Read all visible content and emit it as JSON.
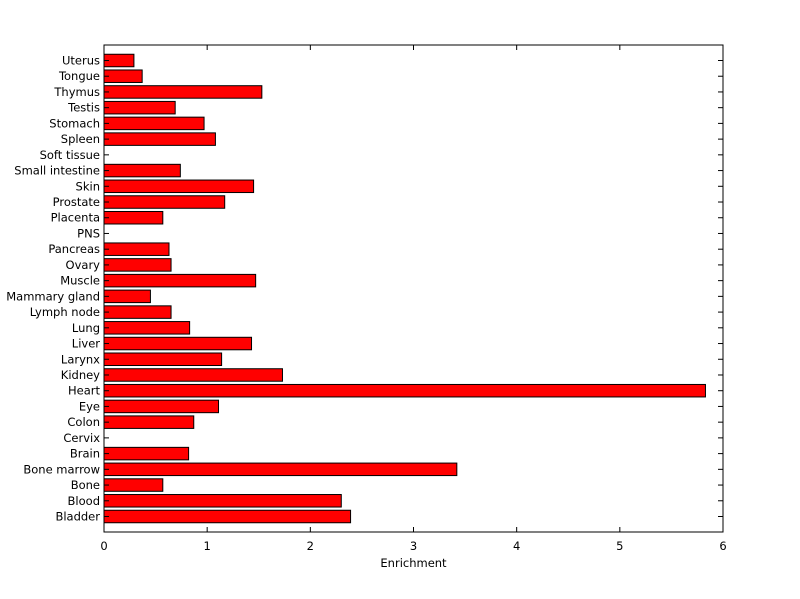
{
  "chart_data": {
    "type": "bar",
    "orientation": "horizontal",
    "title": "",
    "xlabel": "Enrichment",
    "ylabel": "",
    "xlim": [
      0,
      6
    ],
    "xticks": [
      "0",
      "1",
      "2",
      "3",
      "4",
      "5",
      "6"
    ],
    "grid": false,
    "legend": "none",
    "bar_color": "#ff0000",
    "edge_color": "#000000",
    "categories": [
      "Bladder",
      "Blood",
      "Bone",
      "Bone marrow",
      "Brain",
      "Cervix",
      "Colon",
      "Eye",
      "Heart",
      "Kidney",
      "Larynx",
      "Liver",
      "Lung",
      "Lymph node",
      "Mammary gland",
      "Muscle",
      "Ovary",
      "Pancreas",
      "PNS",
      "Placenta",
      "Prostate",
      "Skin",
      "Small intestine",
      "Soft tissue",
      "Spleen",
      "Stomach",
      "Testis",
      "Thymus",
      "Tongue",
      "Uterus"
    ],
    "values": [
      2.39,
      2.3,
      0.57,
      3.42,
      0.82,
      0,
      0.87,
      1.11,
      5.83,
      1.73,
      1.14,
      1.43,
      0.83,
      0.65,
      0.45,
      1.47,
      0.65,
      0.63,
      0,
      0.57,
      1.17,
      1.45,
      0.74,
      0,
      1.08,
      0.97,
      0.69,
      1.53,
      0.37,
      0.29
    ]
  }
}
